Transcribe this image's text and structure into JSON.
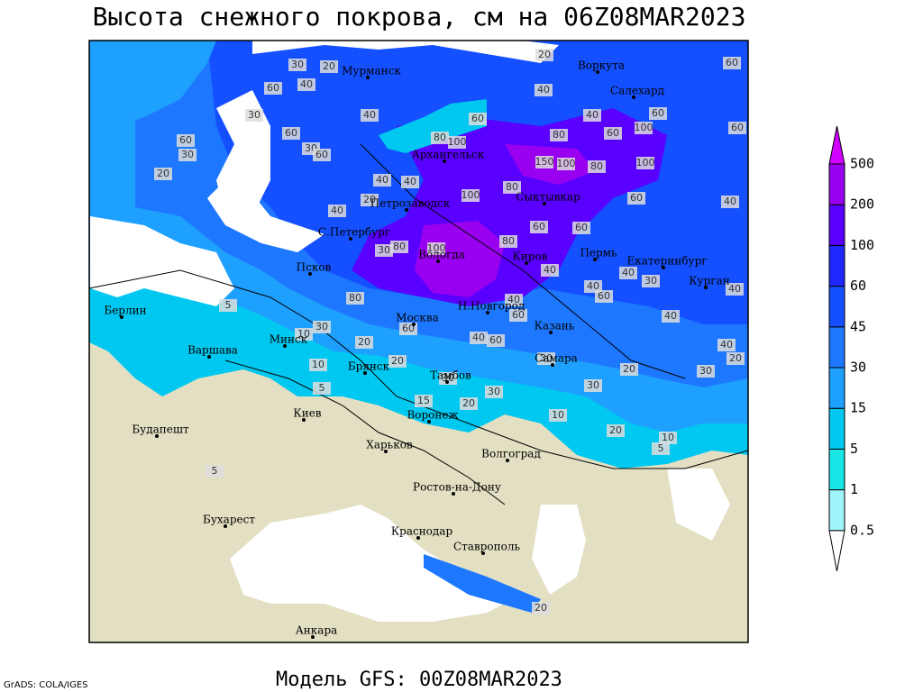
{
  "title": "Высота снежного покрова, см на 06Z08MAR2023",
  "footer": "Модель GFS: 00Z08MAR2023",
  "credit": "GrADS: COLA/IGES",
  "cities": [
    "Мурманск",
    "Воркута",
    "Салехард",
    "Архангельск",
    "Сыктывкар",
    "Петрозаводск",
    "С.Петербург",
    "Вологда",
    "Киров",
    "Пермь",
    "Екатеринбург",
    "Курган",
    "Псков",
    "Н.Новгород",
    "Москва",
    "Казань",
    "Минск",
    "Берлин",
    "Варшава",
    "Брянск",
    "Тамбов",
    "Самара",
    "Киев",
    "Воронеж",
    "Будапешт",
    "Харьков",
    "Волгоград",
    "Ростов-на-Дону",
    "Бухарест",
    "Краснодар",
    "Ставрополь",
    "Анкара"
  ],
  "contour_labels": [
    30,
    20,
    60,
    40,
    30,
    60,
    30,
    20,
    60,
    30,
    60,
    40,
    80,
    100,
    60,
    40,
    20,
    40,
    60,
    60,
    100,
    60,
    60,
    80,
    150,
    100,
    80,
    100,
    100,
    80,
    60,
    40,
    20,
    40,
    40,
    40,
    80,
    100,
    30,
    80,
    60,
    60,
    40,
    40,
    60,
    40,
    30,
    40,
    80,
    40,
    60,
    40,
    30,
    60,
    40,
    60,
    20,
    40,
    20,
    10,
    5,
    20,
    30,
    30,
    20,
    30,
    30,
    30,
    20,
    15,
    10,
    20,
    10,
    5,
    5,
    5,
    20,
    10
  ],
  "legend": {
    "levels": [
      0.5,
      1,
      5,
      15,
      30,
      45,
      60,
      100,
      200,
      500
    ],
    "colors": [
      "#ffffff",
      "#a0f4fa",
      "#18e6e6",
      "#00c8f0",
      "#1ea0ff",
      "#1e78ff",
      "#1450ff",
      "#1e28ff",
      "#5a00ff",
      "#9a00f0",
      "#d200ff"
    ]
  }
}
